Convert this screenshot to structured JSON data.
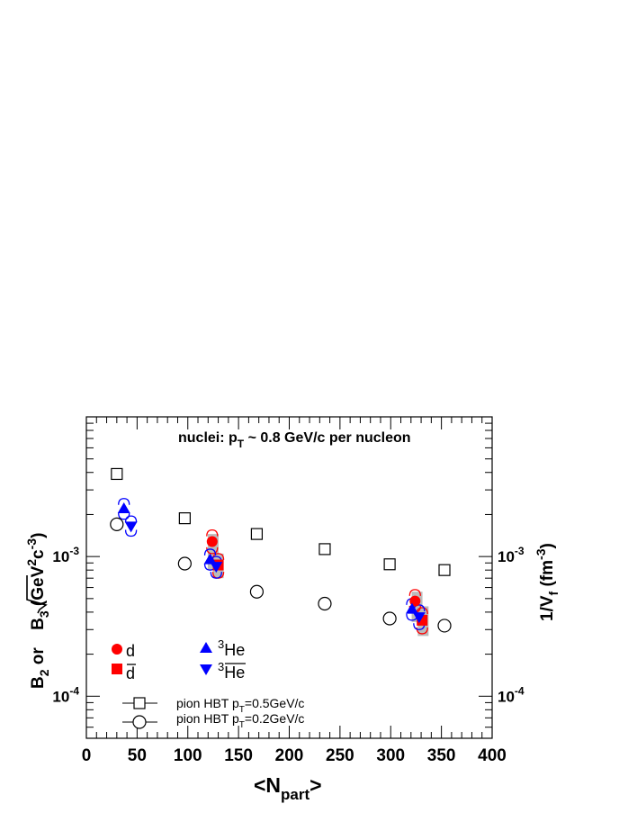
{
  "chart_data": {
    "type": "scatter",
    "annotation": {
      "prefix": "nuclei: p",
      "sub": "T",
      "suffix": " ~ 0.8 GeV/c per nucleon"
    },
    "xlabel": {
      "main": "<N",
      "sub": "part",
      "end": ">"
    },
    "ylabel_left": {
      "text": "B",
      "sub": "2",
      "mid": " or ",
      "sqrt": "B",
      "sqrt_sub": "3",
      "unit": " (GeV",
      "sup1": "2",
      "unit2": "c",
      "sup2": "-3",
      "end": ")"
    },
    "ylabel_right": {
      "text": "1/V",
      "sub": "f",
      "unit": " (fm",
      "sup": "-3",
      "end": ")"
    },
    "x_range": [
      0,
      400
    ],
    "y_range": [
      5e-05,
      0.01
    ],
    "y_scale": "log",
    "x_ticks": [
      0,
      50,
      100,
      150,
      200,
      250,
      300,
      350,
      400
    ],
    "x_tick_labels": [
      "0",
      "50",
      "100",
      "150",
      "200",
      "250",
      "300",
      "350",
      "400"
    ],
    "y_tick_labels": [
      {
        "value": 0.001,
        "base": "10",
        "exp": "-3"
      },
      {
        "value": 0.0001,
        "base": "10",
        "exp": "-4"
      }
    ],
    "y_right_tick_labels": [
      {
        "value": 0.001,
        "base": "10",
        "exp": "-3"
      },
      {
        "value": 0.0001,
        "base": "10",
        "exp": "-4"
      }
    ],
    "series": [
      {
        "key": "d",
        "name": "d",
        "marker": "circle",
        "color": "#ff0000",
        "points": [
          {
            "x": 124,
            "y": 0.00128,
            "sys": [
              0.00105,
              0.00155
            ]
          },
          {
            "x": 324,
            "y": 0.00048,
            "sys": [
              0.0004,
              0.00058
            ]
          }
        ]
      },
      {
        "key": "dbar",
        "name": "d",
        "overline": true,
        "marker": "square",
        "color": "#ff0000",
        "points": [
          {
            "x": 130,
            "y": 0.00087,
            "sys": [
              0.0007,
              0.00105
            ]
          },
          {
            "x": 331,
            "y": 0.00035,
            "sys": [
              0.00028,
              0.00043
            ]
          }
        ]
      },
      {
        "key": "he3",
        "name": "He",
        "sup": "3",
        "marker": "triangle-up",
        "color": "#0000ff",
        "points": [
          {
            "x": 37,
            "y": 0.0022,
            "sys": [
              0.00185,
              0.0026
            ]
          },
          {
            "x": 122,
            "y": 0.00095,
            "sys": [
              0.0008,
              0.00113
            ]
          },
          {
            "x": 321,
            "y": 0.00042,
            "sys": [
              0.00035,
              0.0005
            ]
          }
        ]
      },
      {
        "key": "he3bar",
        "name": "He",
        "sup": "3",
        "overline": true,
        "marker": "triangle-down",
        "color": "#0000ff",
        "points": [
          {
            "x": 44,
            "y": 0.00165,
            "sys": [
              0.0014,
              0.00195
            ]
          },
          {
            "x": 128,
            "y": 0.00085,
            "sys": [
              0.0007,
              0.001
            ]
          },
          {
            "x": 328,
            "y": 0.00037,
            "sys": [
              0.0003,
              0.00045
            ]
          }
        ]
      },
      {
        "key": "hbt05",
        "name": "pion HBT p",
        "sub": "T",
        "suffix": "=0.5GeV/c",
        "marker": "open-square",
        "color": "#000000",
        "points": [
          {
            "x": 30,
            "y": 0.0039
          },
          {
            "x": 97,
            "y": 0.00188
          },
          {
            "x": 168,
            "y": 0.00145
          },
          {
            "x": 235,
            "y": 0.00113
          },
          {
            "x": 299,
            "y": 0.00088
          },
          {
            "x": 353,
            "y": 0.0008
          }
        ]
      },
      {
        "key": "hbt02",
        "name": "pion HBT p",
        "sub": "T",
        "suffix": "=0.2GeV/c",
        "marker": "open-circle",
        "color": "#000000",
        "points": [
          {
            "x": 30,
            "y": 0.0017
          },
          {
            "x": 97,
            "y": 0.00089
          },
          {
            "x": 168,
            "y": 0.00056
          },
          {
            "x": 235,
            "y": 0.00046
          },
          {
            "x": 299,
            "y": 0.00036
          },
          {
            "x": 353,
            "y": 0.00032
          }
        ]
      }
    ],
    "systematic_bands": [
      {
        "x": 125,
        "y": [
          0.0008,
          0.00145
        ],
        "color": "#bbbbbb"
      },
      {
        "x": 130,
        "y": [
          0.0007,
          0.00105
        ],
        "color": "#bbbbbb"
      },
      {
        "x": 326,
        "y": [
          0.00034,
          0.00056
        ],
        "color": "#bbbbbb"
      },
      {
        "x": 332,
        "y": [
          0.00027,
          0.00044
        ],
        "color": "#bbbbbb"
      }
    ],
    "legend": {
      "placement": "bottom-left"
    },
    "grid": false
  }
}
